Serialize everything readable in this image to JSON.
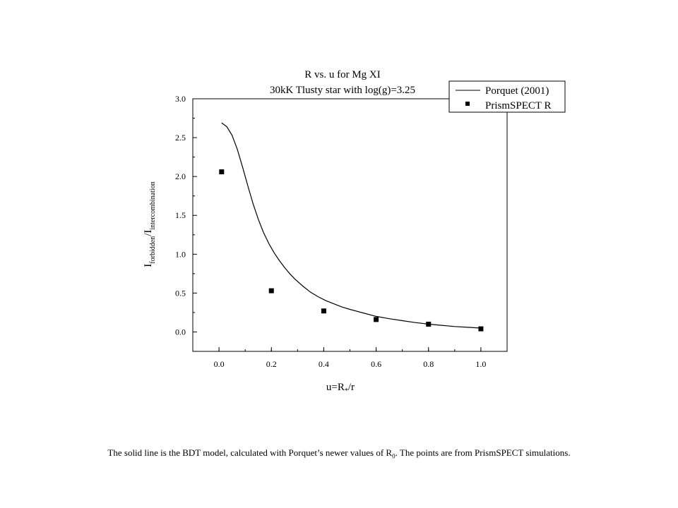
{
  "chart_data": {
    "type": "scatter",
    "title": "R vs. u for Mg XI",
    "subtitle": "30kK Tlusty star with log(g)=3.25",
    "xlabel": {
      "main": "u=R",
      "sub": "*",
      "tail": "/r"
    },
    "ylabel": {
      "part1": "I",
      "sub1": "forbidden",
      "part2": "/I",
      "sub2": "intercombination"
    },
    "xlim": [
      -0.1,
      1.1
    ],
    "ylim": [
      -0.25,
      3.0
    ],
    "x_ticks": [
      "0.0",
      "0.2",
      "0.4",
      "0.6",
      "0.8",
      "1.0"
    ],
    "x_tick_values": [
      0.0,
      0.2,
      0.4,
      0.6,
      0.8,
      1.0
    ],
    "y_ticks": [
      "0.0",
      "0.5",
      "1.0",
      "1.5",
      "2.0",
      "2.5",
      "3.0"
    ],
    "y_tick_values": [
      0.0,
      0.5,
      1.0,
      1.5,
      2.0,
      2.5,
      3.0
    ],
    "grid": false,
    "legend_position": "top-right",
    "series": [
      {
        "name": "Porquet (2001)",
        "kind": "line",
        "x": [
          0.01,
          0.03,
          0.05,
          0.07,
          0.09,
          0.11,
          0.13,
          0.15,
          0.17,
          0.19,
          0.21,
          0.23,
          0.25,
          0.27,
          0.29,
          0.32,
          0.35,
          0.38,
          0.41,
          0.44,
          0.47,
          0.5,
          0.55,
          0.6,
          0.65,
          0.7,
          0.75,
          0.8,
          0.85,
          0.9,
          0.95,
          1.0
        ],
        "y": [
          2.69,
          2.64,
          2.53,
          2.35,
          2.12,
          1.88,
          1.65,
          1.45,
          1.28,
          1.14,
          1.02,
          0.92,
          0.83,
          0.75,
          0.68,
          0.59,
          0.51,
          0.45,
          0.4,
          0.36,
          0.32,
          0.29,
          0.245,
          0.2,
          0.17,
          0.145,
          0.12,
          0.1,
          0.085,
          0.07,
          0.06,
          0.05
        ]
      },
      {
        "name": "PrismSPECT R",
        "kind": "points",
        "x": [
          0.01,
          0.2,
          0.4,
          0.6,
          0.8,
          1.0
        ],
        "y": [
          2.06,
          0.53,
          0.27,
          0.16,
          0.1,
          0.04
        ]
      }
    ]
  },
  "caption": {
    "text_before": "The solid line is the BDT model, calculated with Porquet’s newer values of R",
    "sub": "0",
    "text_after": ".  The points are from PrismSPECT simulations."
  }
}
